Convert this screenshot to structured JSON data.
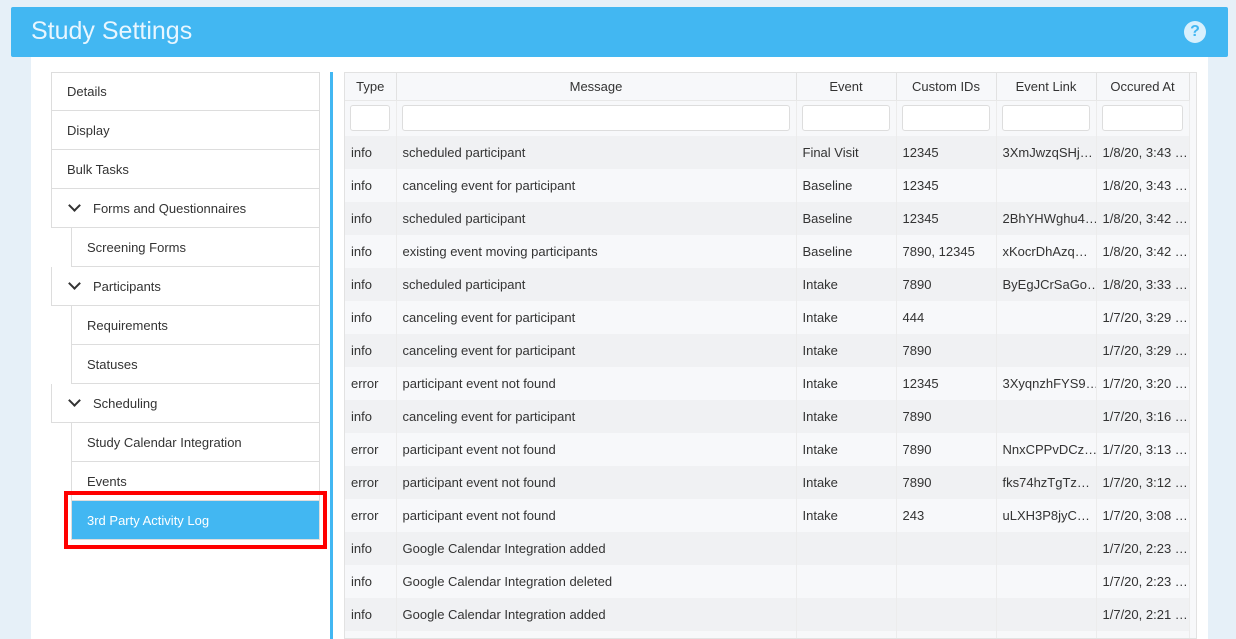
{
  "header": {
    "title": "Study Settings",
    "help_icon": "question-circle-icon"
  },
  "sidebar": {
    "items": [
      {
        "label": "Details",
        "level": 0
      },
      {
        "label": "Display",
        "level": 0
      },
      {
        "label": "Bulk Tasks",
        "level": 0
      },
      {
        "label": "Forms and Questionnaires",
        "level": 0,
        "expanded": true
      },
      {
        "label": "Screening Forms",
        "level": 1
      },
      {
        "label": "Participants",
        "level": 0,
        "expanded": true
      },
      {
        "label": "Requirements",
        "level": 1
      },
      {
        "label": "Statuses",
        "level": 1
      },
      {
        "label": "Scheduling",
        "level": 0,
        "expanded": true
      },
      {
        "label": "Study Calendar Integration",
        "level": 1
      },
      {
        "label": "Events",
        "level": 1
      },
      {
        "label": "3rd Party Activity Log",
        "level": 1,
        "active": true
      }
    ]
  },
  "table": {
    "columns": [
      "Type",
      "Message",
      "Event",
      "Custom IDs",
      "Event Link",
      "Occured At"
    ],
    "rows": [
      [
        "info",
        "scheduled participant",
        "Final Visit",
        "12345",
        "3XmJwzqSHj…",
        "1/8/20, 3:43 …"
      ],
      [
        "info",
        "canceling event for participant",
        "Baseline",
        "12345",
        "",
        "1/8/20, 3:43 …"
      ],
      [
        "info",
        "scheduled participant",
        "Baseline",
        "12345",
        "2BhYHWghu4…",
        "1/8/20, 3:42 …"
      ],
      [
        "info",
        "existing event moving participants",
        "Baseline",
        "7890, 12345",
        "xKocrDhAzq…",
        "1/8/20, 3:42 …"
      ],
      [
        "info",
        "scheduled participant",
        "Intake",
        "7890",
        "ByEgJCrSaGo…",
        "1/8/20, 3:33 …"
      ],
      [
        "info",
        "canceling event for participant",
        "Intake",
        "444",
        "",
        "1/7/20, 3:29 …"
      ],
      [
        "info",
        "canceling event for participant",
        "Intake",
        "7890",
        "",
        "1/7/20, 3:29 …"
      ],
      [
        "error",
        "participant event not found",
        "Intake",
        "12345",
        "3XyqnzhFYS9…",
        "1/7/20, 3:20 …"
      ],
      [
        "info",
        "canceling event for participant",
        "Intake",
        "7890",
        "",
        "1/7/20, 3:16 …"
      ],
      [
        "error",
        "participant event not found",
        "Intake",
        "7890",
        "NnxCPPvDCz…",
        "1/7/20, 3:13 …"
      ],
      [
        "error",
        "participant event not found",
        "Intake",
        "7890",
        "fks74hzTgTz…",
        "1/7/20, 3:12 …"
      ],
      [
        "error",
        "participant event not found",
        "Intake",
        "243",
        "uLXH3P8jyC…",
        "1/7/20, 3:08 …"
      ],
      [
        "info",
        "Google Calendar Integration added",
        "",
        "",
        "",
        "1/7/20, 2:23 …"
      ],
      [
        "info",
        "Google Calendar Integration deleted",
        "",
        "",
        "",
        "1/7/20, 2:23 …"
      ],
      [
        "info",
        "Google Calendar Integration added",
        "",
        "",
        "",
        "1/7/20, 2:21 …"
      ]
    ]
  },
  "colors": {
    "accent": "#42b7f2",
    "highlight": "#ff0000"
  }
}
